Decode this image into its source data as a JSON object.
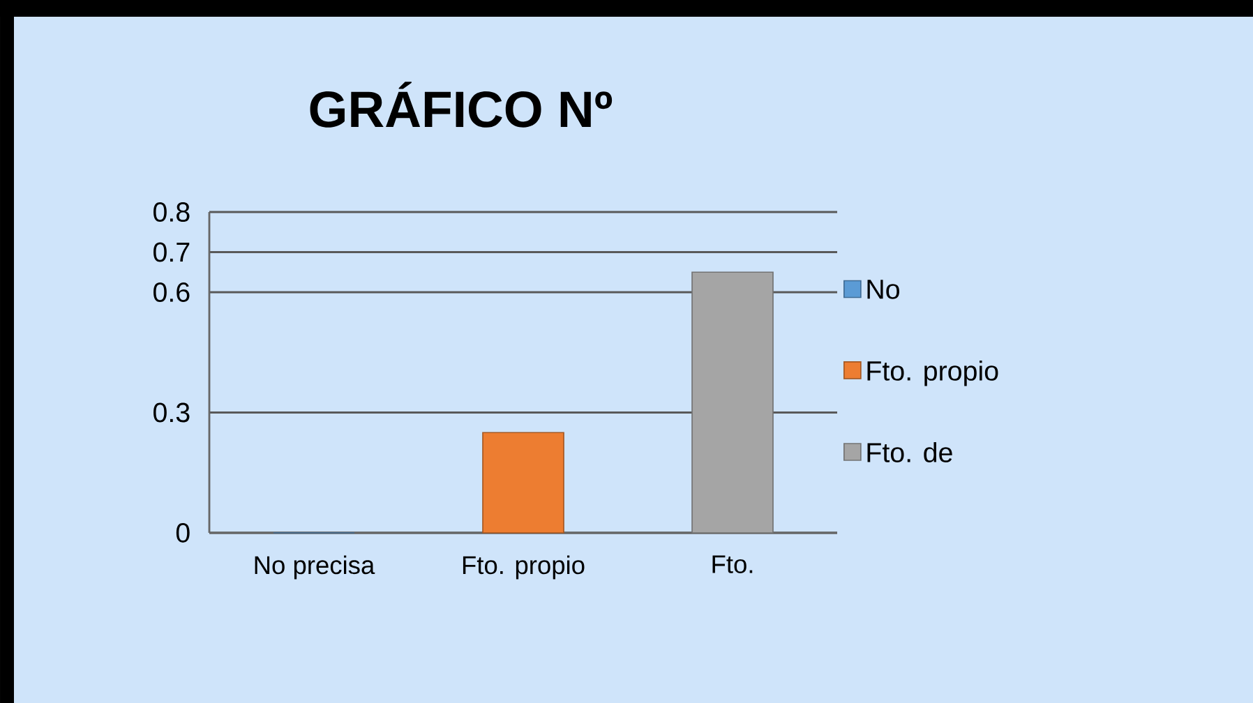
{
  "chart_data": {
    "type": "bar",
    "title": "GRÁFICO Nº",
    "categories": [
      "No precisa",
      "Fto. propio",
      "Fto."
    ],
    "series": [
      {
        "name": "No",
        "color": "#5b9bd5",
        "values": [
          0,
          null,
          null
        ]
      },
      {
        "name": "Fto. propio",
        "color": "#ed7d31",
        "values": [
          null,
          0.25,
          null
        ]
      },
      {
        "name": "Fto. de",
        "color": "#a5a5a5",
        "values": [
          null,
          null,
          0.65
        ]
      }
    ],
    "ylim": [
      0,
      0.8
    ],
    "yticks": [
      0,
      0.3,
      0.6,
      0.7,
      0.8
    ],
    "grid": "y",
    "legend": "right"
  }
}
